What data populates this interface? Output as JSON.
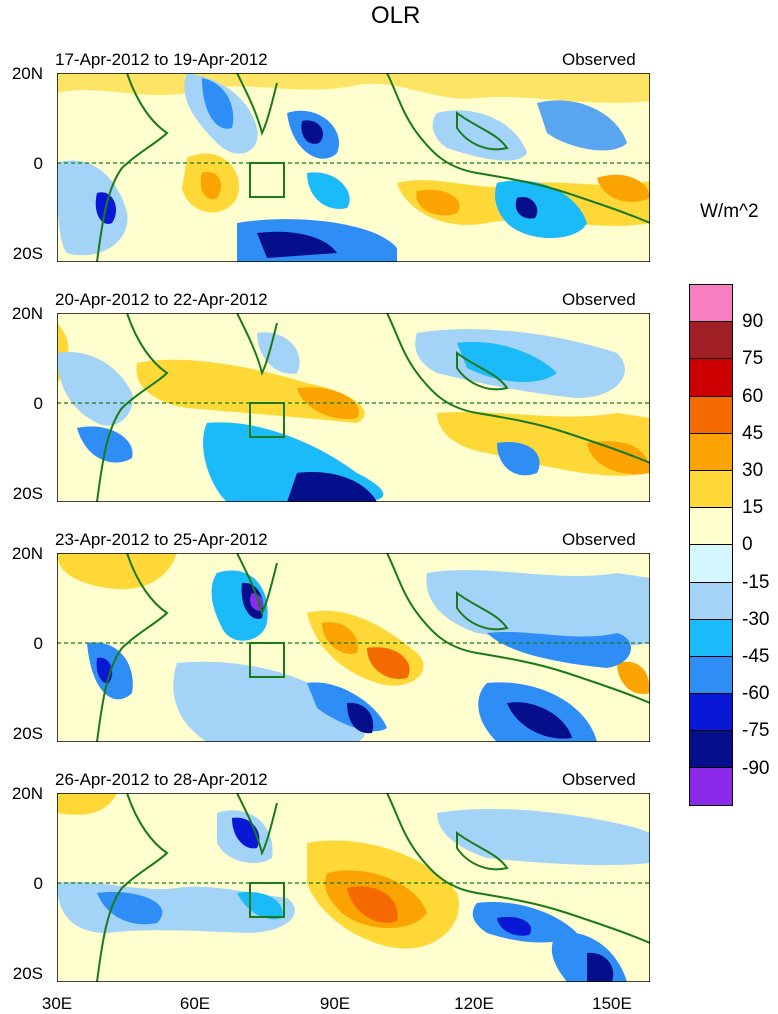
{
  "figure": {
    "title": "OLR",
    "units_label": "W/m^2"
  },
  "panels": [
    {
      "date_range": "17-Apr-2012 to 19-Apr-2012",
      "tag": "Observed"
    },
    {
      "date_range": "20-Apr-2012 to 22-Apr-2012",
      "tag": "Observed"
    },
    {
      "date_range": "23-Apr-2012 to 25-Apr-2012",
      "tag": "Observed"
    },
    {
      "date_range": "26-Apr-2012 to 28-Apr-2012",
      "tag": "Observed"
    }
  ],
  "axes": {
    "lat_ticks": [
      "20N",
      "0",
      "20S"
    ],
    "lon_ticks": [
      "30E",
      "60E",
      "90E",
      "120E",
      "150E"
    ]
  },
  "colorbar": {
    "labels": [
      "90",
      "75",
      "60",
      "45",
      "30",
      "15",
      "0",
      "-15",
      "-30",
      "-45",
      "-60",
      "-75",
      "-90"
    ],
    "colors": [
      "#f77ec0",
      "#a01f24",
      "#cc0000",
      "#f56a00",
      "#fba300",
      "#fdd836",
      "#fefecf",
      "#d4f6fd",
      "#a3d3f6",
      "#1bbaf8",
      "#2f8ef6",
      "#0818d4",
      "#050f8b",
      "#8b2ae8"
    ]
  }
}
